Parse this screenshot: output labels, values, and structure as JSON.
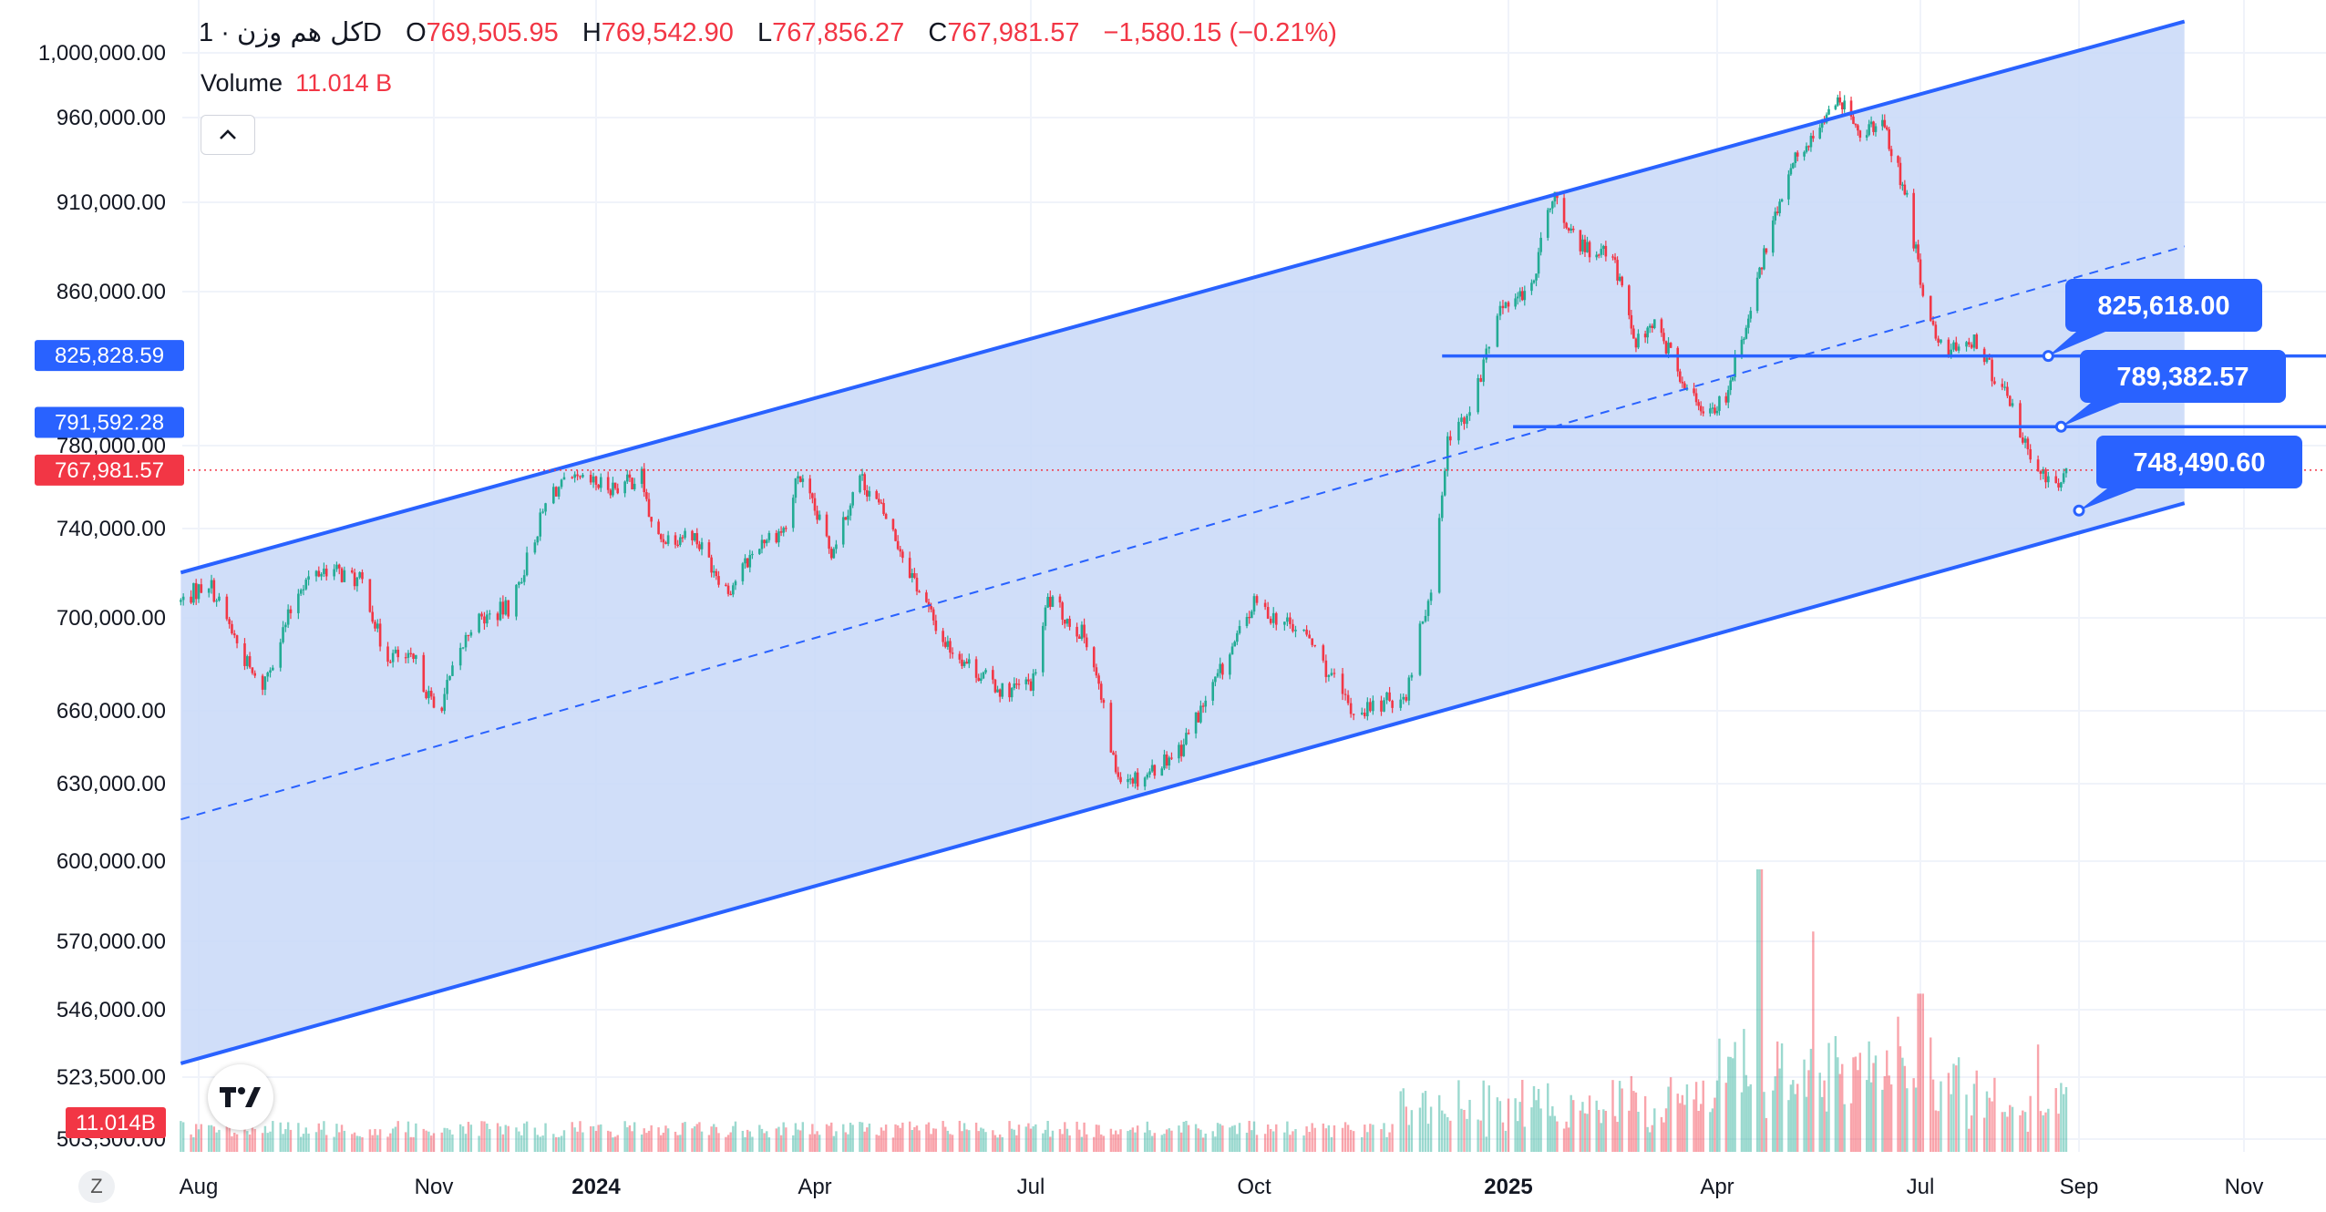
{
  "header": {
    "symbol": "کل هم وزن",
    "interval_sep": "·",
    "interval": "1D",
    "open_key": "O",
    "open": "769,505.95",
    "high_key": "H",
    "high": "769,542.90",
    "low_key": "L",
    "low": "767,856.27",
    "close_key": "C",
    "close": "767,981.57",
    "change": "−1,580.15 (−0.21%)"
  },
  "volume": {
    "label": "Volume",
    "value": "11.014 B"
  },
  "icons": {
    "collapse": "chevron-up-icon",
    "logo": "tradingview-logo",
    "z": "z-button"
  },
  "z_label": "Z",
  "colors": {
    "up": "#22ab94",
    "down": "#f23645",
    "channel": "#2962ff",
    "fill": "#c8d8f8"
  },
  "chart_data": {
    "type": "candlestick",
    "title": "کل هم وزن · 1D",
    "x_ticks": [
      {
        "label": "Aug",
        "date": "2023-08-01"
      },
      {
        "label": "Nov",
        "date": "2023-11-01"
      },
      {
        "label": "2024",
        "date": "2024-01-01",
        "bold": true
      },
      {
        "label": "Apr",
        "date": "2024-04-01"
      },
      {
        "label": "Jul",
        "date": "2024-07-01"
      },
      {
        "label": "Oct",
        "date": "2024-10-01"
      },
      {
        "label": "2025",
        "date": "2025-01-01",
        "bold": true
      },
      {
        "label": "Apr",
        "date": "2025-04-01"
      },
      {
        "label": "Jul",
        "date": "2025-07-01"
      },
      {
        "label": "Sep",
        "date": "2025-09-01"
      },
      {
        "label": "Nov",
        "date": "2025-11-01"
      }
    ],
    "y_ticks": [
      {
        "label": "1,000,000.00",
        "value": 1000000
      },
      {
        "label": "960,000.00",
        "value": 960000
      },
      {
        "label": "910,000.00",
        "value": 910000
      },
      {
        "label": "860,000.00",
        "value": 860000
      },
      {
        "label": "780,000.00",
        "value": 780000
      },
      {
        "label": "740,000.00",
        "value": 740000
      },
      {
        "label": "700,000.00",
        "value": 700000
      },
      {
        "label": "660,000.00",
        "value": 660000
      },
      {
        "label": "630,000.00",
        "value": 630000
      },
      {
        "label": "600,000.00",
        "value": 600000
      },
      {
        "label": "570,000.00",
        "value": 570000
      },
      {
        "label": "546,000.00",
        "value": 546000
      },
      {
        "label": "523,500.00",
        "value": 523500
      },
      {
        "label": "503,500.00",
        "value": 503500
      }
    ],
    "y_range": [
      500000,
      1020000
    ],
    "y_scale": "log",
    "grid": true,
    "price_path": [
      {
        "date": "2023-07-25",
        "value": 707000
      },
      {
        "date": "2023-08-05",
        "value": 716000
      },
      {
        "date": "2023-08-25",
        "value": 668000
      },
      {
        "date": "2023-09-10",
        "value": 715000
      },
      {
        "date": "2023-09-20",
        "value": 722000
      },
      {
        "date": "2023-10-05",
        "value": 715000
      },
      {
        "date": "2023-10-12",
        "value": 685000
      },
      {
        "date": "2023-10-25",
        "value": 680000
      },
      {
        "date": "2023-11-02",
        "value": 658000
      },
      {
        "date": "2023-11-15",
        "value": 697000
      },
      {
        "date": "2023-11-30",
        "value": 705000
      },
      {
        "date": "2023-12-15",
        "value": 758000
      },
      {
        "date": "2023-12-25",
        "value": 762000
      },
      {
        "date": "2024-01-10",
        "value": 760000
      },
      {
        "date": "2024-01-20",
        "value": 765000
      },
      {
        "date": "2024-01-25",
        "value": 735000
      },
      {
        "date": "2024-02-10",
        "value": 738000
      },
      {
        "date": "2024-02-25",
        "value": 712000
      },
      {
        "date": "2024-03-10",
        "value": 735000
      },
      {
        "date": "2024-03-20",
        "value": 740000
      },
      {
        "date": "2024-03-25",
        "value": 766000
      },
      {
        "date": "2024-04-08",
        "value": 730000
      },
      {
        "date": "2024-04-20",
        "value": 765000
      },
      {
        "date": "2024-05-01",
        "value": 745000
      },
      {
        "date": "2024-05-15",
        "value": 712000
      },
      {
        "date": "2024-05-25",
        "value": 690000
      },
      {
        "date": "2024-06-10",
        "value": 675000
      },
      {
        "date": "2024-06-20",
        "value": 668000
      },
      {
        "date": "2024-07-02",
        "value": 672000
      },
      {
        "date": "2024-07-08",
        "value": 708000
      },
      {
        "date": "2024-07-25",
        "value": 690000
      },
      {
        "date": "2024-08-05",
        "value": 635000
      },
      {
        "date": "2024-08-15",
        "value": 632000
      },
      {
        "date": "2024-09-01",
        "value": 645000
      },
      {
        "date": "2024-09-20",
        "value": 682000
      },
      {
        "date": "2024-10-01",
        "value": 706000
      },
      {
        "date": "2024-10-20",
        "value": 692000
      },
      {
        "date": "2024-11-05",
        "value": 660000
      },
      {
        "date": "2024-11-15",
        "value": 662000
      },
      {
        "date": "2024-11-25",
        "value": 668000
      },
      {
        "date": "2024-12-05",
        "value": 720000
      },
      {
        "date": "2024-12-10",
        "value": 780000
      },
      {
        "date": "2024-12-20",
        "value": 805000
      },
      {
        "date": "2024-12-30",
        "value": 855000
      },
      {
        "date": "2025-01-10",
        "value": 858000
      },
      {
        "date": "2025-01-20",
        "value": 915000
      },
      {
        "date": "2025-02-01",
        "value": 885000
      },
      {
        "date": "2025-02-15",
        "value": 878000
      },
      {
        "date": "2025-02-25",
        "value": 832000
      },
      {
        "date": "2025-03-05",
        "value": 846000
      },
      {
        "date": "2025-03-15",
        "value": 818000
      },
      {
        "date": "2025-03-25",
        "value": 795000
      },
      {
        "date": "2025-04-05",
        "value": 805000
      },
      {
        "date": "2025-04-15",
        "value": 848000
      },
      {
        "date": "2025-04-25",
        "value": 895000
      },
      {
        "date": "2025-05-05",
        "value": 935000
      },
      {
        "date": "2025-05-20",
        "value": 962000
      },
      {
        "date": "2025-05-28",
        "value": 970000
      },
      {
        "date": "2025-06-05",
        "value": 950000
      },
      {
        "date": "2025-06-15",
        "value": 955000
      },
      {
        "date": "2025-06-25",
        "value": 910000
      },
      {
        "date": "2025-07-05",
        "value": 840000
      },
      {
        "date": "2025-07-12",
        "value": 828000
      },
      {
        "date": "2025-07-22",
        "value": 835000
      },
      {
        "date": "2025-08-05",
        "value": 800000
      },
      {
        "date": "2025-08-15",
        "value": 770000
      },
      {
        "date": "2025-08-22",
        "value": 760000
      },
      {
        "date": "2025-08-27",
        "value": 768000
      }
    ],
    "volume_spikes": [
      {
        "date": "2025-04-20",
        "value": 1.0
      },
      {
        "date": "2025-05-15",
        "value": 0.78
      },
      {
        "date": "2025-07-01",
        "value": 0.56
      },
      {
        "date": "2025-08-15",
        "value": 0.38
      }
    ],
    "channel": {
      "upper": [
        {
          "date": "2023-07-25",
          "value": 720000
        },
        {
          "date": "2025-10-10",
          "value": 1020000
        }
      ],
      "lower": [
        {
          "date": "2023-07-25",
          "value": 528000
        },
        {
          "date": "2025-10-10",
          "value": 752000
        }
      ],
      "mid": [
        {
          "date": "2023-07-25",
          "value": 616000
        },
        {
          "date": "2025-10-10",
          "value": 885000
        }
      ]
    },
    "horizontal_lines": [
      {
        "value": 825618.0,
        "label": "825,618.00",
        "from": "2024-12-08",
        "to": "2025-11-30"
      },
      {
        "value": 789382.57,
        "label": "789,382.57",
        "from": "2025-01-03",
        "to": "2025-11-30"
      }
    ],
    "callouts": [
      {
        "label": "825,618.00",
        "anchor_date": "2025-08-20",
        "anchor_value": 825618.0
      },
      {
        "label": "789,382.57",
        "anchor_date": "2025-08-25",
        "anchor_value": 789382.57
      },
      {
        "label": "748,490.60",
        "anchor_date": "2025-09-01",
        "anchor_value": 748490.6
      }
    ],
    "axis_badges": [
      {
        "label": "825,828.59",
        "value": 825828.59,
        "color": "#2962ff"
      },
      {
        "label": "791,592.28",
        "value": 791592.28,
        "color": "#2962ff"
      },
      {
        "label": "767,981.57",
        "value": 767981.57,
        "color": "#f23645"
      },
      {
        "label": "11.014B",
        "value": "volume",
        "color": "#f23645"
      }
    ],
    "last_price": 767981.57
  }
}
